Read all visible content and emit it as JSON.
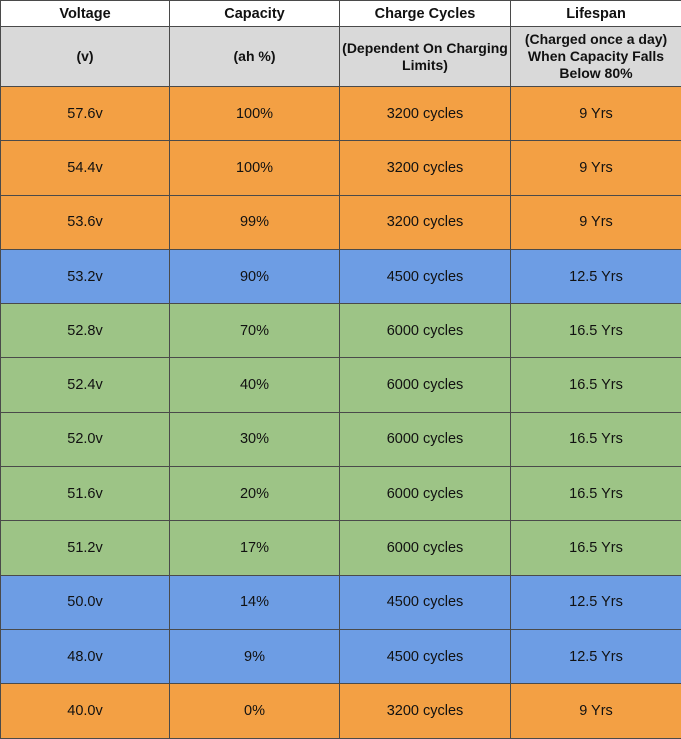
{
  "table": {
    "headers": [
      "Voltage",
      "Capacity",
      "Charge Cycles",
      "Lifespan"
    ],
    "subheaders": [
      "(v)",
      "(ah %)",
      "(Dependent On Charging Limits)",
      "(Charged once a day) When Capacity Falls Below 80%"
    ],
    "rows": [
      {
        "cells": [
          "57.6v",
          "100%",
          "3200 cycles",
          "9 Yrs"
        ],
        "color": "orange"
      },
      {
        "cells": [
          "54.4v",
          "100%",
          "3200 cycles",
          "9 Yrs"
        ],
        "color": "orange"
      },
      {
        "cells": [
          "53.6v",
          "99%",
          "3200 cycles",
          "9 Yrs"
        ],
        "color": "orange"
      },
      {
        "cells": [
          "53.2v",
          "90%",
          "4500 cycles",
          "12.5 Yrs"
        ],
        "color": "blue"
      },
      {
        "cells": [
          "52.8v",
          "70%",
          "6000 cycles",
          "16.5 Yrs"
        ],
        "color": "green"
      },
      {
        "cells": [
          "52.4v",
          "40%",
          "6000 cycles",
          "16.5 Yrs"
        ],
        "color": "green"
      },
      {
        "cells": [
          "52.0v",
          "30%",
          "6000 cycles",
          "16.5 Yrs"
        ],
        "color": "green"
      },
      {
        "cells": [
          "51.6v",
          "20%",
          "6000 cycles",
          "16.5 Yrs"
        ],
        "color": "green"
      },
      {
        "cells": [
          "51.2v",
          "17%",
          "6000 cycles",
          "16.5 Yrs"
        ],
        "color": "green"
      },
      {
        "cells": [
          "50.0v",
          "14%",
          "4500 cycles",
          "12.5 Yrs"
        ],
        "color": "blue"
      },
      {
        "cells": [
          "48.0v",
          "9%",
          "4500 cycles",
          "12.5 Yrs"
        ],
        "color": "blue"
      },
      {
        "cells": [
          "40.0v",
          "0%",
          "3200 cycles",
          "9 Yrs"
        ],
        "color": "orange"
      }
    ]
  },
  "colors": {
    "orange": "#f3a044",
    "blue": "#6d9de4",
    "green": "#9dc486",
    "header_gray": "#d9d9d9"
  }
}
